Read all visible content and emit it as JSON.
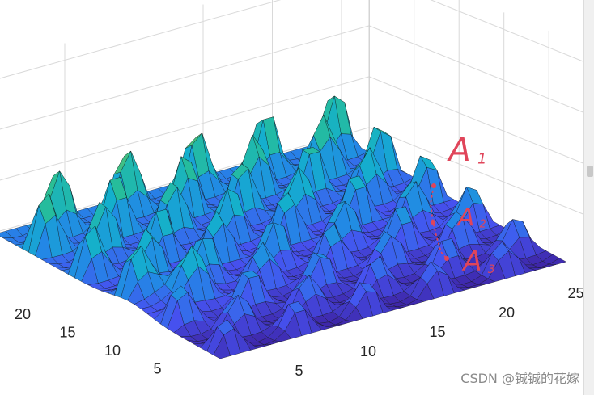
{
  "chart_data": {
    "type": "surface",
    "title": "",
    "xlabel": "",
    "ylabel": "",
    "zlabel": "",
    "x_ticks": [
      5,
      10,
      15,
      20,
      25
    ],
    "y_ticks": [
      5,
      10,
      15,
      20
    ],
    "xlim": [
      0,
      25
    ],
    "ylim": [
      0,
      25
    ],
    "colormap": "parula",
    "grid": true,
    "surface_description": "3D surface with a regular grid of peaks; peak height grows along y",
    "annotations": [
      {
        "label": "A1",
        "text": "A",
        "sub": "1"
      },
      {
        "label": "A2",
        "text": "A",
        "sub": "2"
      },
      {
        "label": "A3",
        "text": "A",
        "sub": "3"
      }
    ]
  },
  "watermark": "CSDN @铖铖的花嫁",
  "colors": {
    "annotation": "#e0455a",
    "mesh": "#111111",
    "grid": "#d9d9d9"
  }
}
